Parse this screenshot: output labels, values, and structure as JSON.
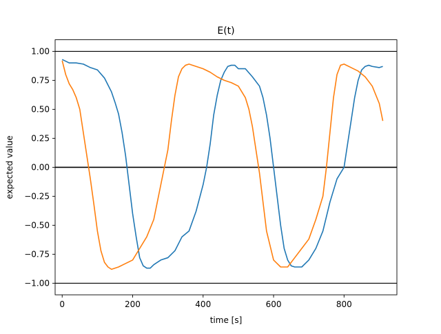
{
  "chart_data": {
    "type": "line",
    "title": "E(t)",
    "xlabel": "time [s]",
    "ylabel": "expected value",
    "xlim": [
      -20,
      950
    ],
    "ylim": [
      -1.1,
      1.1
    ],
    "xticks": [
      0,
      200,
      400,
      600,
      800
    ],
    "xtick_labels": [
      "0",
      "200",
      "400",
      "600",
      "800"
    ],
    "yticks": [
      -1.0,
      -0.75,
      -0.5,
      -0.25,
      0.0,
      0.25,
      0.5,
      0.75,
      1.0
    ],
    "ytick_labels": [
      "−1.00",
      "−0.75",
      "−0.50",
      "−0.25",
      "0.00",
      "0.25",
      "0.50",
      "0.75",
      "1.00"
    ],
    "grid": false,
    "reference_lines": [
      {
        "y": 1.0,
        "color": "#000000"
      },
      {
        "y": 0.0,
        "color": "#000000"
      },
      {
        "y": -1.0,
        "color": "#000000"
      }
    ],
    "series": [
      {
        "color": "#1f77b4",
        "x": [
          0,
          20,
          40,
          60,
          80,
          100,
          120,
          140,
          150,
          160,
          170,
          180,
          190,
          200,
          210,
          220,
          230,
          240,
          250,
          260,
          280,
          300,
          320,
          340,
          360,
          380,
          400,
          410,
          420,
          430,
          440,
          450,
          460,
          470,
          480,
          490,
          500,
          520,
          540,
          560,
          570,
          580,
          590,
          600,
          610,
          620,
          630,
          640,
          650,
          660,
          680,
          700,
          720,
          740,
          760,
          780,
          800,
          810,
          820,
          830,
          840,
          850,
          860,
          870,
          880,
          900,
          910
        ],
        "y": [
          0.93,
          0.9,
          0.9,
          0.89,
          0.86,
          0.84,
          0.77,
          0.65,
          0.56,
          0.46,
          0.3,
          0.1,
          -0.15,
          -0.4,
          -0.6,
          -0.78,
          -0.85,
          -0.87,
          -0.87,
          -0.84,
          -0.8,
          -0.78,
          -0.72,
          -0.6,
          -0.55,
          -0.38,
          -0.15,
          0.0,
          0.2,
          0.45,
          0.62,
          0.75,
          0.82,
          0.87,
          0.88,
          0.88,
          0.85,
          0.85,
          0.78,
          0.7,
          0.6,
          0.45,
          0.25,
          0.0,
          -0.25,
          -0.5,
          -0.7,
          -0.8,
          -0.85,
          -0.86,
          -0.86,
          -0.8,
          -0.7,
          -0.55,
          -0.3,
          -0.1,
          0.0,
          0.2,
          0.4,
          0.6,
          0.75,
          0.84,
          0.87,
          0.88,
          0.87,
          0.86,
          0.87
        ]
      },
      {
        "color": "#ff7f0e",
        "x": [
          0,
          10,
          20,
          30,
          40,
          50,
          60,
          70,
          80,
          90,
          100,
          110,
          120,
          130,
          140,
          160,
          180,
          200,
          220,
          240,
          260,
          270,
          280,
          290,
          300,
          310,
          320,
          330,
          340,
          350,
          360,
          380,
          400,
          420,
          440,
          460,
          480,
          500,
          520,
          530,
          540,
          550,
          560,
          570,
          580,
          600,
          620,
          640,
          660,
          680,
          700,
          720,
          740,
          750,
          760,
          770,
          780,
          790,
          800,
          820,
          840,
          860,
          880,
          900,
          910
        ],
        "y": [
          0.92,
          0.8,
          0.72,
          0.67,
          0.6,
          0.5,
          0.3,
          0.1,
          -0.1,
          -0.32,
          -0.55,
          -0.72,
          -0.82,
          -0.86,
          -0.88,
          -0.86,
          -0.83,
          -0.8,
          -0.7,
          -0.6,
          -0.45,
          -0.3,
          -0.15,
          0.0,
          0.15,
          0.4,
          0.62,
          0.78,
          0.85,
          0.88,
          0.89,
          0.87,
          0.85,
          0.82,
          0.78,
          0.75,
          0.73,
          0.7,
          0.6,
          0.5,
          0.35,
          0.15,
          -0.05,
          -0.3,
          -0.55,
          -0.8,
          -0.86,
          -0.86,
          -0.78,
          -0.7,
          -0.62,
          -0.45,
          -0.25,
          0.0,
          0.3,
          0.6,
          0.8,
          0.88,
          0.89,
          0.86,
          0.83,
          0.78,
          0.7,
          0.55,
          0.4
        ]
      }
    ]
  }
}
